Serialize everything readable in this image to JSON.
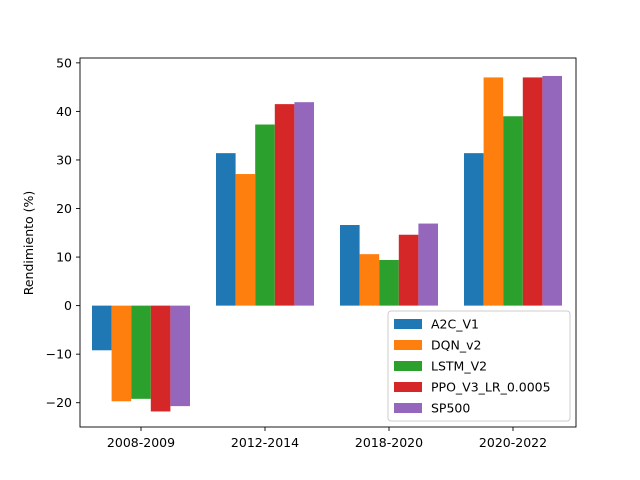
{
  "chart_data": {
    "type": "bar",
    "title": "",
    "xlabel": "",
    "ylabel": "Rendimiento (%)",
    "ylim": [
      -25,
      51
    ],
    "yticks": [
      -20,
      -10,
      0,
      10,
      20,
      30,
      40,
      50
    ],
    "ytick_labels": [
      "−20",
      "−10",
      "0",
      "10",
      "20",
      "30",
      "40",
      "50"
    ],
    "categories": [
      "2008-2009",
      "2012-2014",
      "2018-2020",
      "2020-2022"
    ],
    "legend_position": "lower-right",
    "grid": false,
    "series": [
      {
        "name": "A2C_V1",
        "color": "#1f77b4",
        "values": [
          -9.2,
          31.4,
          16.6,
          31.4
        ]
      },
      {
        "name": "DQN_v2",
        "color": "#ff7f0e",
        "values": [
          -19.7,
          27.1,
          10.6,
          47.0
        ]
      },
      {
        "name": "LSTM_V2",
        "color": "#2ca02c",
        "values": [
          -19.2,
          37.3,
          9.4,
          39.0
        ]
      },
      {
        "name": "PPO_V3_LR_0.0005",
        "color": "#d62728",
        "values": [
          -21.8,
          41.5,
          14.6,
          47.0
        ]
      },
      {
        "name": "SP500",
        "color": "#9467bd",
        "values": [
          -20.7,
          41.9,
          16.9,
          47.3
        ]
      }
    ]
  }
}
